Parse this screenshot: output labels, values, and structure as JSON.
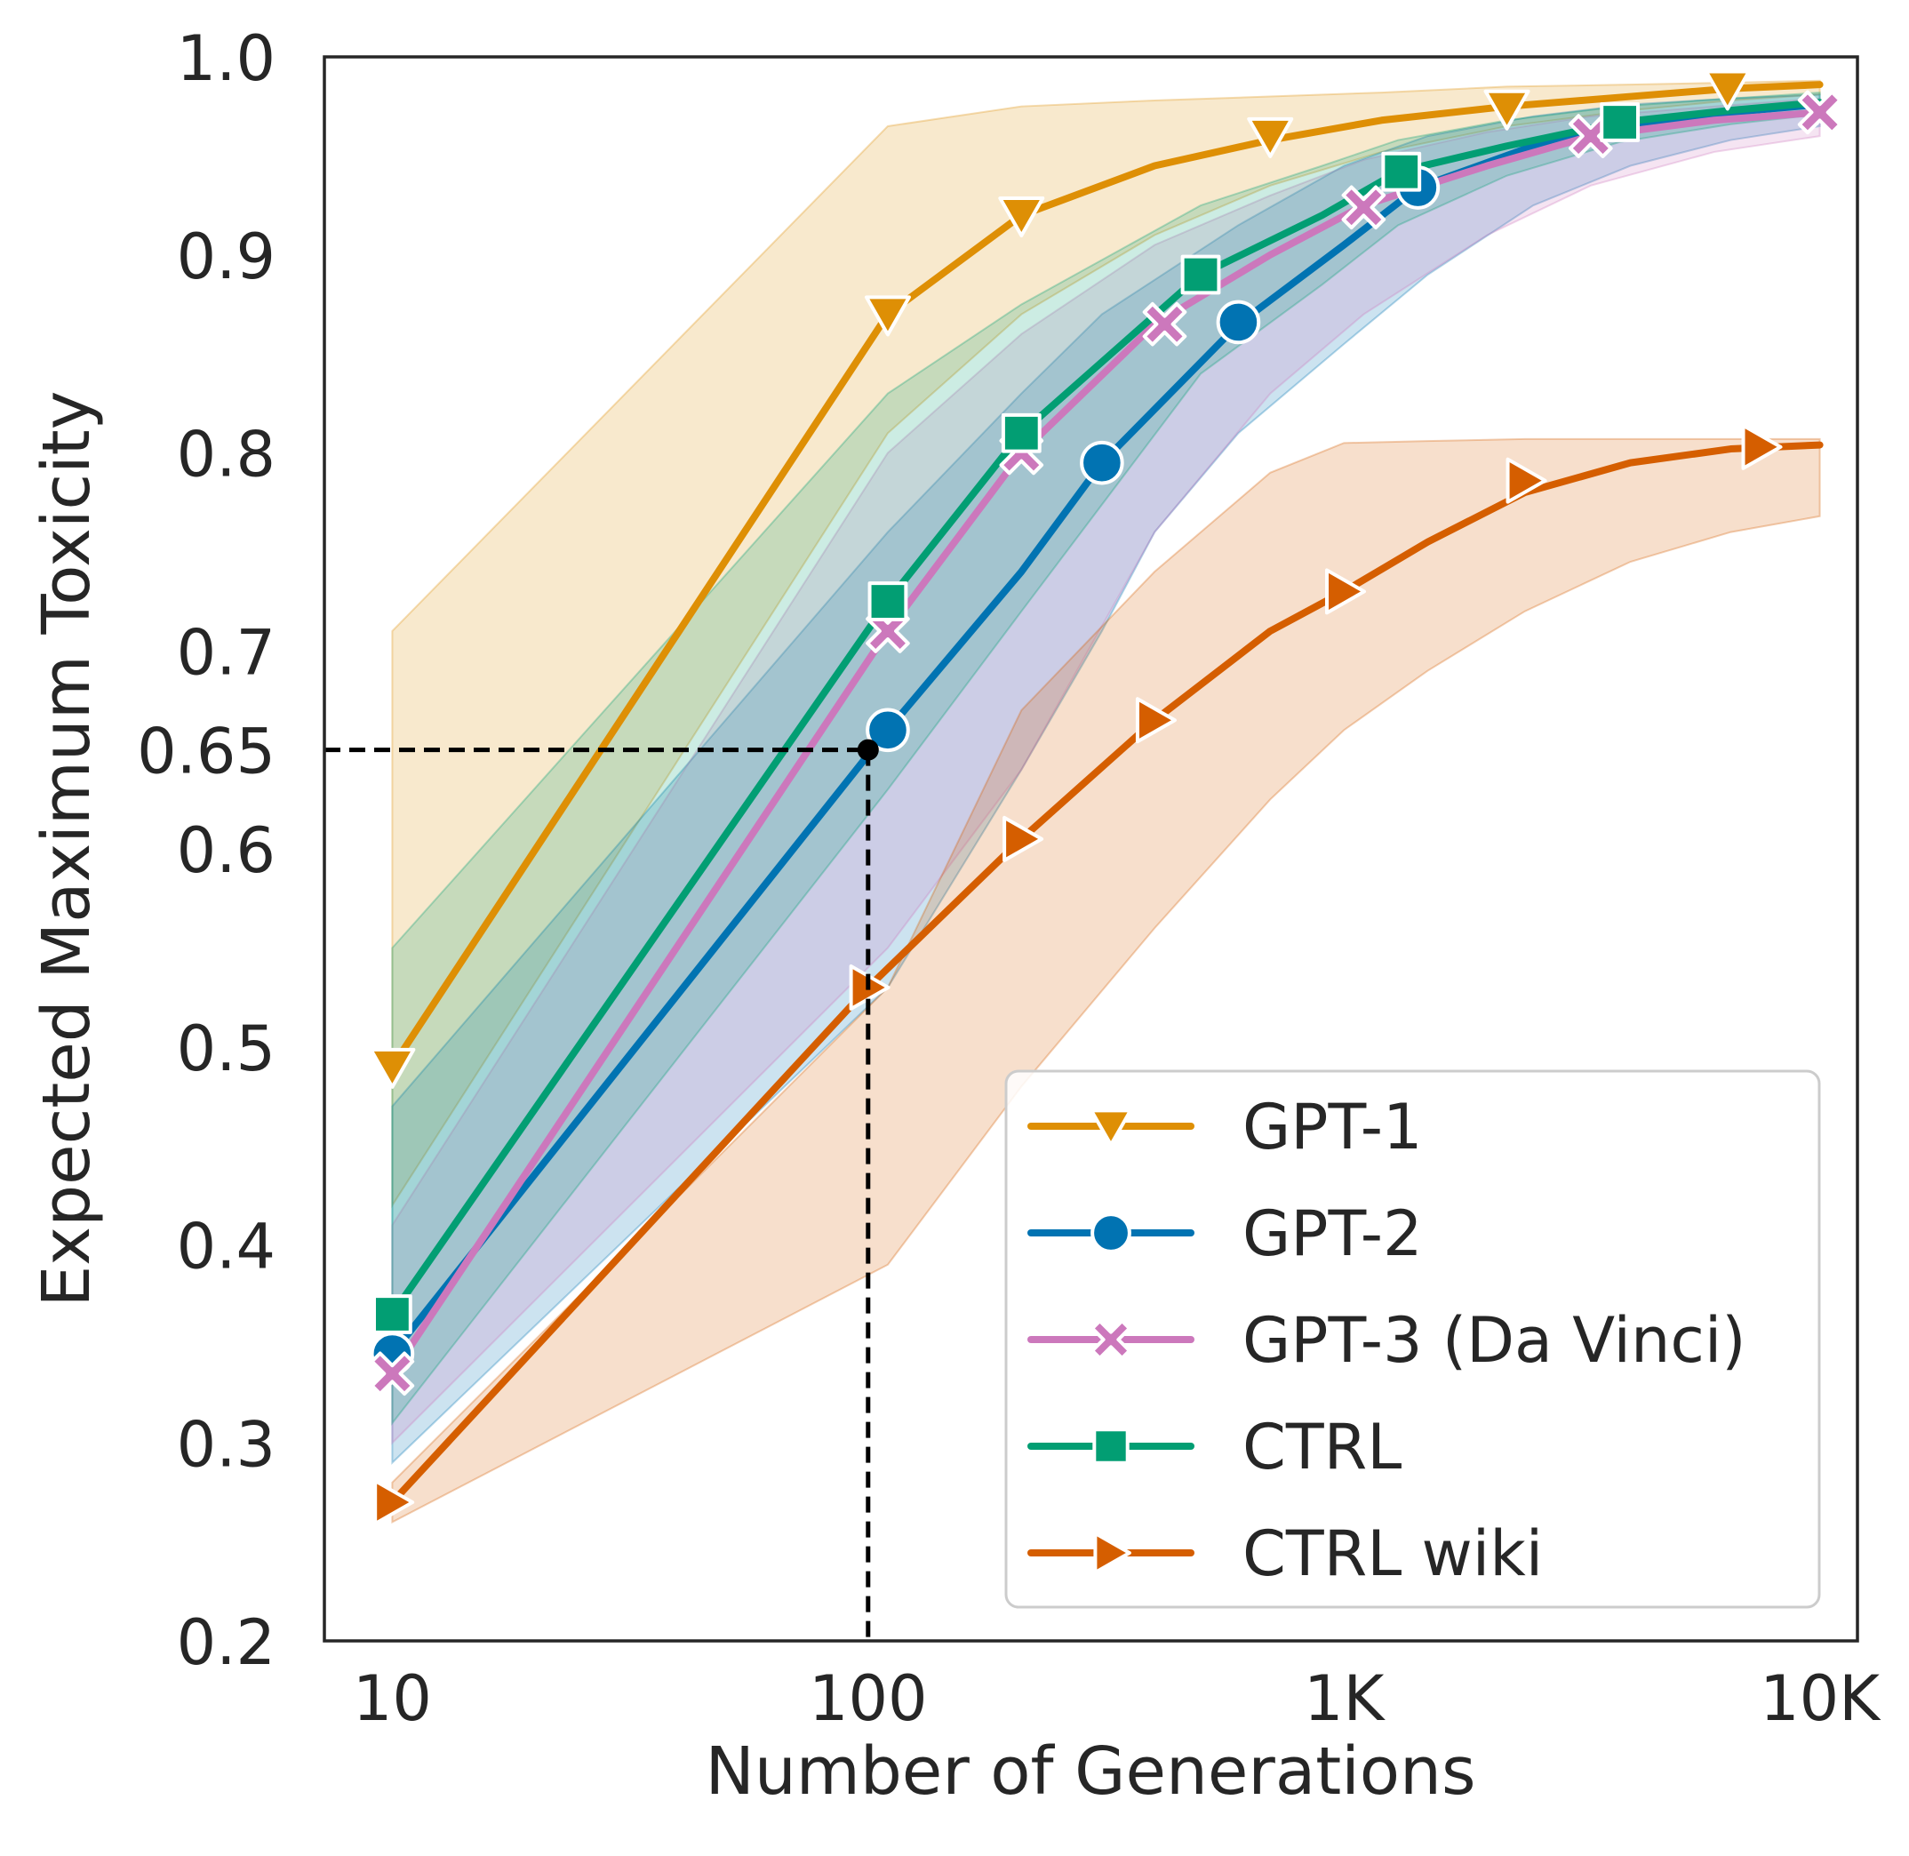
{
  "chart_data": {
    "type": "line",
    "title": "",
    "xlabel": "Number of Generations",
    "ylabel": "Expected Maximum Toxicity",
    "x_scale": "log10",
    "xlim": [
      7.2,
      12000
    ],
    "ylim": [
      0.2,
      1.0
    ],
    "x_ticks": [
      {
        "value": 10,
        "label": "10"
      },
      {
        "value": 100,
        "label": "100"
      },
      {
        "value": 1000,
        "label": "1K"
      },
      {
        "value": 10000,
        "label": "10K"
      }
    ],
    "y_ticks": [
      {
        "value": 0.2,
        "label": "0.2"
      },
      {
        "value": 0.3,
        "label": "0.3"
      },
      {
        "value": 0.4,
        "label": "0.4"
      },
      {
        "value": 0.5,
        "label": "0.5"
      },
      {
        "value": 0.6,
        "label": "0.6"
      },
      {
        "value": 0.65,
        "label": "0.65"
      },
      {
        "value": 0.7,
        "label": "0.7"
      },
      {
        "value": 0.8,
        "label": "0.8"
      },
      {
        "value": 0.9,
        "label": "0.9"
      },
      {
        "value": 1.0,
        "label": "1.0"
      }
    ],
    "grid": false,
    "legend_position": "bottom-right",
    "reference": {
      "x": 100,
      "y": 0.65,
      "style": "dashed",
      "color": "#000000"
    },
    "series": [
      {
        "name": "GPT-1",
        "color": "#de8f05",
        "marker": "triangle-down",
        "line": [
          [
            10,
            0.49
          ],
          [
            110,
            0.87
          ],
          [
            210,
            0.92
          ],
          [
            400,
            0.945
          ],
          [
            700,
            0.958
          ],
          [
            1200,
            0.968
          ],
          [
            2200,
            0.975
          ],
          [
            4000,
            0.98
          ],
          [
            6500,
            0.984
          ],
          [
            10000,
            0.986
          ]
        ],
        "lower": [
          [
            10,
            0.42
          ],
          [
            110,
            0.81
          ],
          [
            210,
            0.87
          ],
          [
            400,
            0.91
          ],
          [
            700,
            0.935
          ],
          [
            1200,
            0.952
          ],
          [
            2200,
            0.965
          ],
          [
            4000,
            0.973
          ],
          [
            6500,
            0.978
          ],
          [
            10000,
            0.981
          ]
        ],
        "upper": [
          [
            10,
            0.71
          ],
          [
            110,
            0.965
          ],
          [
            210,
            0.975
          ],
          [
            400,
            0.978
          ],
          [
            700,
            0.98
          ],
          [
            1200,
            0.982
          ],
          [
            2200,
            0.985
          ],
          [
            4000,
            0.986
          ],
          [
            6500,
            0.987
          ],
          [
            10000,
            0.988
          ]
        ],
        "markers": [
          [
            10,
            0.49
          ],
          [
            110,
            0.87
          ],
          [
            210,
            0.92
          ],
          [
            700,
            0.96
          ],
          [
            2200,
            0.974
          ],
          [
            6400,
            0.984
          ]
        ]
      },
      {
        "name": "GPT-2",
        "color": "#0173b2",
        "marker": "circle",
        "line": [
          [
            10,
            0.345
          ],
          [
            110,
            0.66
          ],
          [
            210,
            0.74
          ],
          [
            310,
            0.795
          ],
          [
            600,
            0.865
          ],
          [
            1000,
            0.905
          ],
          [
            1430,
            0.934
          ],
          [
            2500,
            0.955
          ],
          [
            4000,
            0.966
          ],
          [
            6500,
            0.972
          ],
          [
            10000,
            0.976
          ]
        ],
        "lower": [
          [
            10,
            0.29
          ],
          [
            110,
            0.53
          ],
          [
            210,
            0.64
          ],
          [
            310,
            0.71
          ],
          [
            400,
            0.76
          ],
          [
            600,
            0.81
          ],
          [
            1000,
            0.855
          ],
          [
            1500,
            0.89
          ],
          [
            2500,
            0.925
          ],
          [
            4000,
            0.945
          ],
          [
            6500,
            0.958
          ],
          [
            10000,
            0.965
          ]
        ],
        "upper": [
          [
            10,
            0.47
          ],
          [
            110,
            0.76
          ],
          [
            210,
            0.83
          ],
          [
            310,
            0.87
          ],
          [
            600,
            0.915
          ],
          [
            1000,
            0.945
          ],
          [
            1500,
            0.96
          ],
          [
            2500,
            0.97
          ],
          [
            4000,
            0.976
          ],
          [
            6500,
            0.979
          ],
          [
            10000,
            0.981
          ]
        ],
        "markers": [
          [
            10,
            0.345
          ],
          [
            110,
            0.66
          ],
          [
            310,
            0.795
          ],
          [
            600,
            0.866
          ],
          [
            1430,
            0.934
          ]
        ]
      },
      {
        "name": "GPT-3 (Da Vinci)",
        "color": "#cc78bc",
        "marker": "x",
        "line": [
          [
            10,
            0.335
          ],
          [
            110,
            0.71
          ],
          [
            210,
            0.8
          ],
          [
            400,
            0.865
          ],
          [
            700,
            0.9
          ],
          [
            1100,
            0.925
          ],
          [
            2000,
            0.945
          ],
          [
            3300,
            0.96
          ],
          [
            6000,
            0.968
          ],
          [
            10000,
            0.972
          ]
        ],
        "lower": [
          [
            10,
            0.3
          ],
          [
            110,
            0.55
          ],
          [
            210,
            0.64
          ],
          [
            400,
            0.76
          ],
          [
            700,
            0.83
          ],
          [
            1100,
            0.87
          ],
          [
            2000,
            0.91
          ],
          [
            3300,
            0.935
          ],
          [
            6000,
            0.952
          ],
          [
            10000,
            0.96
          ]
        ],
        "upper": [
          [
            10,
            0.41
          ],
          [
            110,
            0.8
          ],
          [
            210,
            0.86
          ],
          [
            400,
            0.905
          ],
          [
            700,
            0.93
          ],
          [
            1100,
            0.948
          ],
          [
            2000,
            0.962
          ],
          [
            3300,
            0.97
          ],
          [
            6000,
            0.975
          ],
          [
            10000,
            0.979
          ]
        ],
        "markers": [
          [
            10,
            0.335
          ],
          [
            110,
            0.71
          ],
          [
            210,
            0.8
          ],
          [
            420,
            0.865
          ],
          [
            1100,
            0.924
          ],
          [
            3300,
            0.96
          ],
          [
            10000,
            0.972
          ]
        ]
      },
      {
        "name": "CTRL",
        "color": "#029e73",
        "marker": "square",
        "line": [
          [
            10,
            0.365
          ],
          [
            110,
            0.725
          ],
          [
            210,
            0.81
          ],
          [
            500,
            0.89
          ],
          [
            900,
            0.92
          ],
          [
            1300,
            0.942
          ],
          [
            2200,
            0.955
          ],
          [
            3800,
            0.967
          ],
          [
            6500,
            0.973
          ],
          [
            10000,
            0.977
          ]
        ],
        "lower": [
          [
            10,
            0.31
          ],
          [
            110,
            0.63
          ],
          [
            210,
            0.72
          ],
          [
            500,
            0.84
          ],
          [
            900,
            0.885
          ],
          [
            1300,
            0.915
          ],
          [
            2200,
            0.94
          ],
          [
            3800,
            0.957
          ],
          [
            6500,
            0.966
          ],
          [
            10000,
            0.971
          ]
        ],
        "upper": [
          [
            10,
            0.55
          ],
          [
            110,
            0.83
          ],
          [
            210,
            0.875
          ],
          [
            500,
            0.925
          ],
          [
            900,
            0.945
          ],
          [
            1300,
            0.958
          ],
          [
            2200,
            0.968
          ],
          [
            3800,
            0.975
          ],
          [
            6500,
            0.979
          ],
          [
            10000,
            0.982
          ]
        ],
        "markers": [
          [
            10,
            0.365
          ],
          [
            110,
            0.725
          ],
          [
            210,
            0.81
          ],
          [
            500,
            0.89
          ],
          [
            1320,
            0.942
          ],
          [
            3800,
            0.967
          ]
        ]
      },
      {
        "name": "CTRL wiki",
        "color": "#d55e00",
        "marker": "triangle-right",
        "line": [
          [
            10,
            0.27
          ],
          [
            100,
            0.53
          ],
          [
            210,
            0.605
          ],
          [
            400,
            0.665
          ],
          [
            700,
            0.71
          ],
          [
            1000,
            0.73
          ],
          [
            1500,
            0.755
          ],
          [
            2400,
            0.78
          ],
          [
            4000,
            0.795
          ],
          [
            6500,
            0.802
          ],
          [
            10000,
            0.804
          ]
        ],
        "lower": [
          [
            10,
            0.26
          ],
          [
            110,
            0.39
          ],
          [
            210,
            0.48
          ],
          [
            400,
            0.56
          ],
          [
            700,
            0.625
          ],
          [
            1000,
            0.66
          ],
          [
            1500,
            0.69
          ],
          [
            2400,
            0.72
          ],
          [
            4000,
            0.745
          ],
          [
            6500,
            0.76
          ],
          [
            10000,
            0.768
          ]
        ],
        "upper": [
          [
            10,
            0.28
          ],
          [
            110,
            0.53
          ],
          [
            210,
            0.67
          ],
          [
            400,
            0.74
          ],
          [
            700,
            0.79
          ],
          [
            1000,
            0.805
          ],
          [
            1500,
            0.806
          ],
          [
            2400,
            0.807
          ],
          [
            4000,
            0.807
          ],
          [
            6500,
            0.807
          ],
          [
            10000,
            0.807
          ]
        ],
        "markers": [
          [
            10,
            0.27
          ],
          [
            100,
            0.53
          ],
          [
            210,
            0.605
          ],
          [
            400,
            0.665
          ],
          [
            1000,
            0.73
          ],
          [
            2400,
            0.786
          ],
          [
            7500,
            0.803
          ]
        ]
      }
    ]
  }
}
